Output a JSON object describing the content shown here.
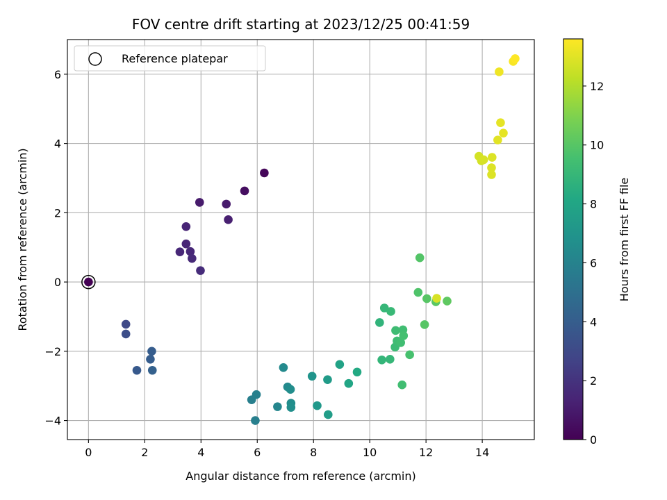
{
  "chart_data": {
    "type": "scatter",
    "title": "FOV centre drift starting at 2023/12/25 00:41:59",
    "xlabel": "Angular distance from reference (arcmin)",
    "ylabel": "Rotation from reference (arcmin)",
    "xlim": [
      -0.75,
      15.85
    ],
    "ylim": [
      -4.55,
      7.0
    ],
    "xticks": [
      0,
      2,
      4,
      6,
      8,
      10,
      12,
      14
    ],
    "yticks": [
      -4,
      -2,
      0,
      2,
      4,
      6
    ],
    "xtick_labels": [
      "0",
      "2",
      "4",
      "6",
      "8",
      "10",
      "12",
      "14"
    ],
    "ytick_labels": [
      "−4",
      "−2",
      "0",
      "2",
      "4",
      "6"
    ],
    "grid": true,
    "legend": {
      "placement": "top-left",
      "entries": [
        "Reference platepar"
      ]
    },
    "reference_point": {
      "x": 0,
      "y": 0,
      "c": 0
    },
    "colorbar": {
      "label": "Hours from first FF file",
      "colormap": "viridis",
      "range": [
        0,
        13.6
      ],
      "ticks": [
        0,
        2,
        4,
        6,
        8,
        10,
        12
      ],
      "tick_labels": [
        "0",
        "2",
        "4",
        "6",
        "8",
        "10",
        "12"
      ]
    },
    "points": [
      {
        "x": 0.0,
        "y": 0.0,
        "c": 0.0
      },
      {
        "x": 6.25,
        "y": 3.15,
        "c": 0.2
      },
      {
        "x": 5.55,
        "y": 2.63,
        "c": 0.5
      },
      {
        "x": 3.95,
        "y": 2.3,
        "c": 1.0
      },
      {
        "x": 4.9,
        "y": 2.25,
        "c": 1.0
      },
      {
        "x": 4.97,
        "y": 1.8,
        "c": 1.2
      },
      {
        "x": 3.47,
        "y": 1.6,
        "c": 1.4
      },
      {
        "x": 3.47,
        "y": 1.1,
        "c": 1.4
      },
      {
        "x": 3.25,
        "y": 0.87,
        "c": 1.5
      },
      {
        "x": 3.62,
        "y": 0.88,
        "c": 1.5
      },
      {
        "x": 3.68,
        "y": 0.68,
        "c": 1.6
      },
      {
        "x": 3.98,
        "y": 0.33,
        "c": 1.7
      },
      {
        "x": 1.33,
        "y": -1.22,
        "c": 3.0
      },
      {
        "x": 1.33,
        "y": -1.5,
        "c": 3.2
      },
      {
        "x": 1.72,
        "y": -2.55,
        "c": 3.8
      },
      {
        "x": 2.25,
        "y": -2.0,
        "c": 4.0
      },
      {
        "x": 2.2,
        "y": -2.23,
        "c": 4.0
      },
      {
        "x": 2.27,
        "y": -2.55,
        "c": 4.2
      },
      {
        "x": 5.93,
        "y": -4.0,
        "c": 5.8
      },
      {
        "x": 5.8,
        "y": -3.4,
        "c": 5.8
      },
      {
        "x": 5.97,
        "y": -3.25,
        "c": 5.9
      },
      {
        "x": 6.72,
        "y": -3.6,
        "c": 6.2
      },
      {
        "x": 6.93,
        "y": -2.47,
        "c": 6.4
      },
      {
        "x": 7.08,
        "y": -3.03,
        "c": 6.4
      },
      {
        "x": 7.18,
        "y": -3.1,
        "c": 6.6
      },
      {
        "x": 7.2,
        "y": -3.5,
        "c": 6.6
      },
      {
        "x": 7.2,
        "y": -3.62,
        "c": 6.7
      },
      {
        "x": 7.95,
        "y": -2.72,
        "c": 7.0
      },
      {
        "x": 8.13,
        "y": -3.57,
        "c": 7.2
      },
      {
        "x": 8.5,
        "y": -2.82,
        "c": 7.4
      },
      {
        "x": 8.52,
        "y": -3.83,
        "c": 7.5
      },
      {
        "x": 8.93,
        "y": -2.38,
        "c": 7.8
      },
      {
        "x": 9.25,
        "y": -2.93,
        "c": 8.0
      },
      {
        "x": 9.55,
        "y": -2.6,
        "c": 8.2
      },
      {
        "x": 10.35,
        "y": -1.17,
        "c": 8.8
      },
      {
        "x": 10.43,
        "y": -2.25,
        "c": 8.9
      },
      {
        "x": 10.52,
        "y": -0.75,
        "c": 9.0
      },
      {
        "x": 10.72,
        "y": -2.23,
        "c": 9.0
      },
      {
        "x": 10.75,
        "y": -0.85,
        "c": 9.1
      },
      {
        "x": 10.9,
        "y": -1.88,
        "c": 9.2
      },
      {
        "x": 10.92,
        "y": -1.4,
        "c": 9.3
      },
      {
        "x": 10.97,
        "y": -1.7,
        "c": 9.3
      },
      {
        "x": 11.1,
        "y": -1.75,
        "c": 9.4
      },
      {
        "x": 11.18,
        "y": -1.38,
        "c": 9.4
      },
      {
        "x": 11.2,
        "y": -1.55,
        "c": 9.5
      },
      {
        "x": 11.15,
        "y": -2.97,
        "c": 9.4
      },
      {
        "x": 11.42,
        "y": -2.1,
        "c": 9.6
      },
      {
        "x": 11.72,
        "y": -0.3,
        "c": 9.8
      },
      {
        "x": 11.78,
        "y": 0.7,
        "c": 9.9
      },
      {
        "x": 11.95,
        "y": -1.23,
        "c": 10.0
      },
      {
        "x": 12.03,
        "y": -0.48,
        "c": 10.0
      },
      {
        "x": 12.35,
        "y": -0.57,
        "c": 10.1
      },
      {
        "x": 12.38,
        "y": -0.47,
        "c": 12.8
      },
      {
        "x": 12.75,
        "y": -0.55,
        "c": 10.2
      },
      {
        "x": 13.88,
        "y": 3.63,
        "c": 12.7
      },
      {
        "x": 13.97,
        "y": 3.5,
        "c": 12.7
      },
      {
        "x": 14.05,
        "y": 3.53,
        "c": 12.8
      },
      {
        "x": 14.35,
        "y": 3.6,
        "c": 12.9
      },
      {
        "x": 14.33,
        "y": 3.3,
        "c": 12.9
      },
      {
        "x": 14.33,
        "y": 3.1,
        "c": 12.9
      },
      {
        "x": 14.55,
        "y": 4.1,
        "c": 13.0
      },
      {
        "x": 14.65,
        "y": 4.6,
        "c": 13.1
      },
      {
        "x": 14.75,
        "y": 4.3,
        "c": 13.1
      },
      {
        "x": 14.6,
        "y": 6.07,
        "c": 13.3
      },
      {
        "x": 15.1,
        "y": 6.37,
        "c": 13.5
      },
      {
        "x": 15.17,
        "y": 6.45,
        "c": 13.6
      }
    ]
  }
}
